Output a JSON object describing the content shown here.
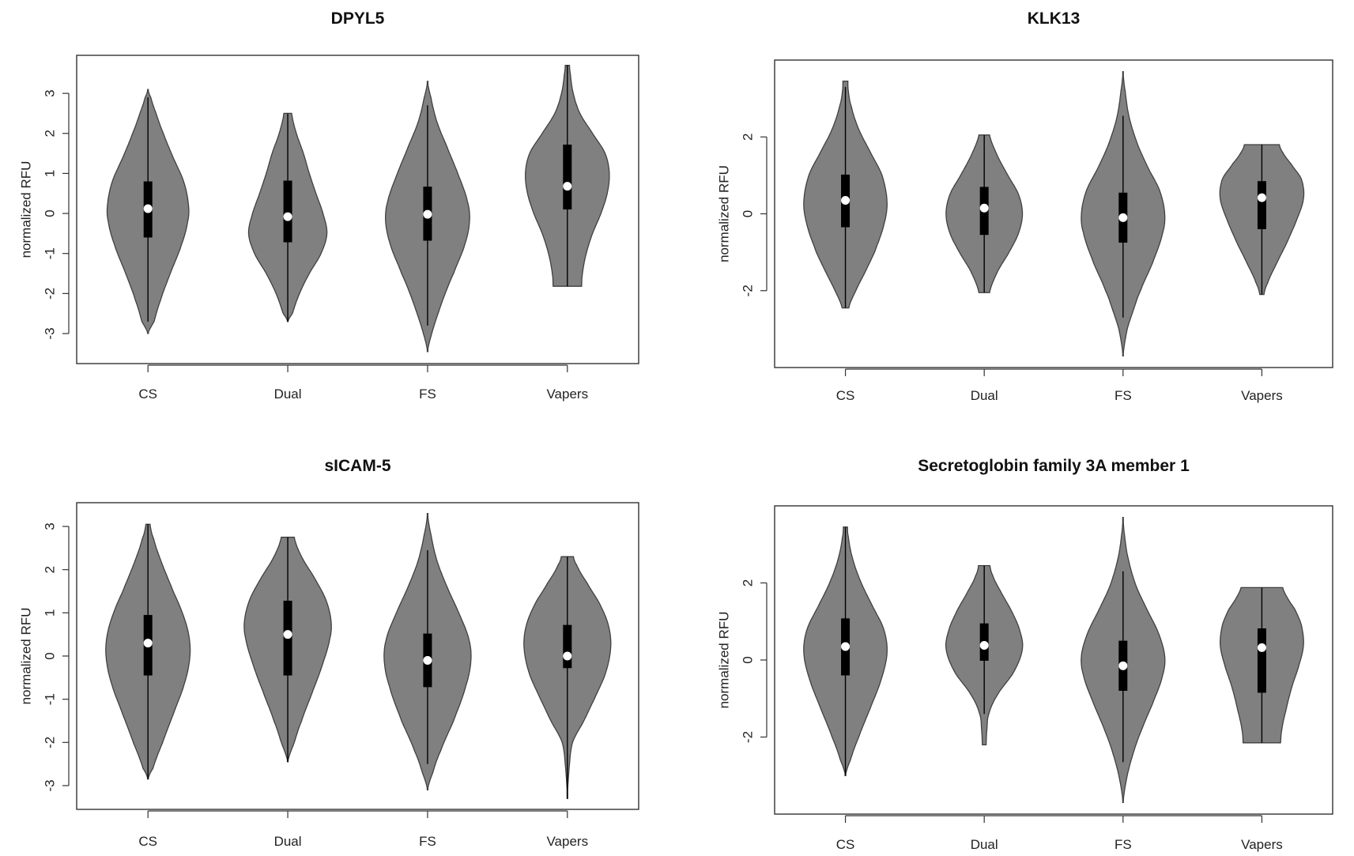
{
  "colors": {
    "violin_fill": "#808080",
    "violin_stroke": "#404040",
    "box": "#000000",
    "median": "#ffffff",
    "frame": "#333333"
  },
  "chart_data": [
    {
      "type": "violin",
      "title": "DPYL5",
      "xlabel": "",
      "ylabel": "normalized RFU",
      "categories": [
        "CS",
        "Dual",
        "FS",
        "Vapers"
      ],
      "yticks": [
        -3,
        -2,
        -1,
        0,
        1,
        2,
        3
      ],
      "ylim": [
        -3.75,
        3.95
      ],
      "grid": false,
      "violins": [
        {
          "name": "CS",
          "min": -3.0,
          "max": 3.1,
          "q1": -0.6,
          "median": 0.12,
          "q3": 0.8,
          "wlo": -2.7,
          "whi": 2.9,
          "width": 0.58,
          "profile": [
            [
              -3.0,
              0.0
            ],
            [
              -2.7,
              0.15
            ],
            [
              -2.2,
              0.3
            ],
            [
              -1.5,
              0.55
            ],
            [
              -0.8,
              0.82
            ],
            [
              -0.2,
              0.98
            ],
            [
              0.2,
              1.0
            ],
            [
              0.8,
              0.88
            ],
            [
              1.4,
              0.62
            ],
            [
              2.0,
              0.38
            ],
            [
              2.5,
              0.2
            ],
            [
              2.9,
              0.07
            ],
            [
              3.1,
              0.0
            ]
          ]
        },
        {
          "name": "Dual",
          "min": -2.7,
          "max": 2.5,
          "q1": -0.72,
          "median": -0.08,
          "q3": 0.82,
          "wlo": -2.7,
          "whi": 2.5,
          "width": 0.56,
          "profile": [
            [
              -2.7,
              0.0
            ],
            [
              -2.5,
              0.12
            ],
            [
              -2.0,
              0.3
            ],
            [
              -1.5,
              0.55
            ],
            [
              -1.0,
              0.85
            ],
            [
              -0.5,
              1.0
            ],
            [
              0.0,
              0.9
            ],
            [
              0.5,
              0.72
            ],
            [
              1.0,
              0.55
            ],
            [
              1.5,
              0.4
            ],
            [
              2.0,
              0.22
            ],
            [
              2.5,
              0.1
            ]
          ]
        },
        {
          "name": "FS",
          "min": -3.45,
          "max": 3.3,
          "q1": -0.68,
          "median": -0.02,
          "q3": 0.67,
          "wlo": -2.8,
          "whi": 2.7,
          "width": 0.6,
          "profile": [
            [
              -3.45,
              0.0
            ],
            [
              -3.0,
              0.1
            ],
            [
              -2.5,
              0.25
            ],
            [
              -2.0,
              0.42
            ],
            [
              -1.5,
              0.62
            ],
            [
              -0.8,
              0.88
            ],
            [
              -0.2,
              1.0
            ],
            [
              0.3,
              0.95
            ],
            [
              1.0,
              0.72
            ],
            [
              1.7,
              0.45
            ],
            [
              2.3,
              0.22
            ],
            [
              2.9,
              0.08
            ],
            [
              3.3,
              0.0
            ]
          ]
        },
        {
          "name": "Vapers",
          "min": -1.82,
          "max": 3.7,
          "q1": 0.1,
          "median": 0.68,
          "q3": 1.72,
          "wlo": -1.82,
          "whi": 3.7,
          "width": 0.6,
          "profile": [
            [
              -1.82,
              0.34
            ],
            [
              -1.5,
              0.36
            ],
            [
              -1.0,
              0.45
            ],
            [
              -0.5,
              0.6
            ],
            [
              0.0,
              0.8
            ],
            [
              0.5,
              0.95
            ],
            [
              1.0,
              1.0
            ],
            [
              1.5,
              0.9
            ],
            [
              2.0,
              0.6
            ],
            [
              2.5,
              0.3
            ],
            [
              3.0,
              0.14
            ],
            [
              3.5,
              0.07
            ],
            [
              3.7,
              0.05
            ]
          ]
        }
      ]
    },
    {
      "type": "violin",
      "title": "KLK13",
      "xlabel": "",
      "ylabel": "normalized RFU",
      "categories": [
        "CS",
        "Dual",
        "FS",
        "Vapers"
      ],
      "yticks": [
        -2,
        0,
        2
      ],
      "ylim": [
        -4.0,
        4.0
      ],
      "grid": false,
      "violins": [
        {
          "name": "CS",
          "min": -2.45,
          "max": 3.45,
          "q1": -0.35,
          "median": 0.35,
          "q3": 1.02,
          "wlo": -2.45,
          "whi": 3.3,
          "width": 0.6,
          "profile": [
            [
              -2.45,
              0.08
            ],
            [
              -2.0,
              0.25
            ],
            [
              -1.5,
              0.48
            ],
            [
              -1.0,
              0.7
            ],
            [
              -0.3,
              0.92
            ],
            [
              0.3,
              1.0
            ],
            [
              1.0,
              0.88
            ],
            [
              1.6,
              0.6
            ],
            [
              2.2,
              0.32
            ],
            [
              2.8,
              0.14
            ],
            [
              3.2,
              0.07
            ],
            [
              3.45,
              0.06
            ]
          ]
        },
        {
          "name": "Dual",
          "min": -2.05,
          "max": 2.05,
          "q1": -0.55,
          "median": 0.15,
          "q3": 0.7,
          "wlo": -2.05,
          "whi": 2.05,
          "width": 0.55,
          "profile": [
            [
              -2.05,
              0.14
            ],
            [
              -1.5,
              0.35
            ],
            [
              -1.0,
              0.65
            ],
            [
              -0.5,
              0.9
            ],
            [
              0.0,
              1.0
            ],
            [
              0.5,
              0.9
            ],
            [
              1.0,
              0.62
            ],
            [
              1.5,
              0.35
            ],
            [
              2.05,
              0.14
            ]
          ]
        },
        {
          "name": "FS",
          "min": -3.7,
          "max": 3.7,
          "q1": -0.75,
          "median": -0.1,
          "q3": 0.55,
          "wlo": -2.7,
          "whi": 2.55,
          "width": 0.6,
          "profile": [
            [
              -3.7,
              0.0
            ],
            [
              -3.0,
              0.1
            ],
            [
              -2.5,
              0.25
            ],
            [
              -2.0,
              0.42
            ],
            [
              -1.3,
              0.7
            ],
            [
              -0.5,
              0.95
            ],
            [
              0.0,
              1.0
            ],
            [
              0.6,
              0.88
            ],
            [
              1.2,
              0.6
            ],
            [
              1.8,
              0.35
            ],
            [
              2.5,
              0.15
            ],
            [
              3.2,
              0.05
            ],
            [
              3.7,
              0.0
            ]
          ]
        },
        {
          "name": "Vapers",
          "min": -2.1,
          "max": 1.8,
          "q1": -0.4,
          "median": 0.42,
          "q3": 0.85,
          "wlo": -2.1,
          "whi": 1.8,
          "width": 0.6,
          "profile": [
            [
              -2.1,
              0.05
            ],
            [
              -1.8,
              0.14
            ],
            [
              -1.3,
              0.35
            ],
            [
              -0.8,
              0.58
            ],
            [
              -0.2,
              0.82
            ],
            [
              0.4,
              1.0
            ],
            [
              0.9,
              0.95
            ],
            [
              1.3,
              0.7
            ],
            [
              1.6,
              0.5
            ],
            [
              1.8,
              0.42
            ]
          ]
        }
      ]
    },
    {
      "type": "violin",
      "title": "sICAM-5",
      "xlabel": "",
      "ylabel": "normalized RFU",
      "categories": [
        "CS",
        "Dual",
        "FS",
        "Vapers"
      ],
      "yticks": [
        -3,
        -2,
        -1,
        0,
        1,
        2,
        3
      ],
      "ylim": [
        -3.55,
        3.55
      ],
      "grid": false,
      "violins": [
        {
          "name": "CS",
          "min": -2.85,
          "max": 3.05,
          "q1": -0.45,
          "median": 0.3,
          "q3": 0.95,
          "wlo": -2.85,
          "whi": 3.05,
          "width": 0.6,
          "profile": [
            [
              -2.85,
              0.0
            ],
            [
              -2.6,
              0.12
            ],
            [
              -2.0,
              0.35
            ],
            [
              -1.3,
              0.62
            ],
            [
              -0.6,
              0.88
            ],
            [
              0.0,
              1.0
            ],
            [
              0.5,
              0.97
            ],
            [
              1.0,
              0.82
            ],
            [
              1.5,
              0.6
            ],
            [
              2.1,
              0.35
            ],
            [
              2.7,
              0.14
            ],
            [
              3.05,
              0.05
            ]
          ]
        },
        {
          "name": "Dual",
          "min": -2.45,
          "max": 2.75,
          "q1": -0.45,
          "median": 0.5,
          "q3": 1.28,
          "wlo": -2.45,
          "whi": 2.75,
          "width": 0.62,
          "profile": [
            [
              -2.45,
              0.0
            ],
            [
              -2.0,
              0.15
            ],
            [
              -1.5,
              0.32
            ],
            [
              -0.8,
              0.58
            ],
            [
              -0.2,
              0.8
            ],
            [
              0.4,
              0.97
            ],
            [
              0.8,
              1.0
            ],
            [
              1.3,
              0.88
            ],
            [
              1.8,
              0.62
            ],
            [
              2.3,
              0.32
            ],
            [
              2.75,
              0.15
            ]
          ]
        },
        {
          "name": "FS",
          "min": -3.1,
          "max": 3.3,
          "q1": -0.72,
          "median": -0.1,
          "q3": 0.52,
          "wlo": -2.5,
          "whi": 2.45,
          "width": 0.62,
          "profile": [
            [
              -3.1,
              0.0
            ],
            [
              -2.7,
              0.12
            ],
            [
              -2.2,
              0.3
            ],
            [
              -1.5,
              0.6
            ],
            [
              -0.7,
              0.88
            ],
            [
              -0.1,
              1.0
            ],
            [
              0.4,
              0.95
            ],
            [
              1.0,
              0.72
            ],
            [
              1.6,
              0.45
            ],
            [
              2.2,
              0.22
            ],
            [
              2.8,
              0.08
            ],
            [
              3.3,
              0.0
            ]
          ]
        },
        {
          "name": "Vapers",
          "min": -3.3,
          "max": 2.3,
          "q1": -0.28,
          "median": 0.0,
          "q3": 0.72,
          "wlo": -3.3,
          "whi": 2.3,
          "width": 0.62,
          "profile": [
            [
              -3.3,
              0.0
            ],
            [
              -2.6,
              0.04
            ],
            [
              -2.0,
              0.12
            ],
            [
              -1.5,
              0.38
            ],
            [
              -1.0,
              0.62
            ],
            [
              -0.4,
              0.88
            ],
            [
              0.2,
              1.0
            ],
            [
              0.7,
              0.95
            ],
            [
              1.2,
              0.75
            ],
            [
              1.7,
              0.45
            ],
            [
              2.1,
              0.22
            ],
            [
              2.3,
              0.14
            ]
          ]
        }
      ]
    },
    {
      "type": "violin",
      "title": "Secretoglobin family 3A member 1",
      "xlabel": "",
      "ylabel": "normalized RFU",
      "categories": [
        "CS",
        "Dual",
        "FS",
        "Vapers"
      ],
      "yticks": [
        -2,
        0,
        2
      ],
      "ylim": [
        -4.0,
        4.0
      ],
      "grid": false,
      "violins": [
        {
          "name": "CS",
          "min": -3.0,
          "max": 3.45,
          "q1": -0.4,
          "median": 0.35,
          "q3": 1.08,
          "wlo": -3.0,
          "whi": 3.45,
          "width": 0.6,
          "profile": [
            [
              -3.0,
              0.0
            ],
            [
              -2.6,
              0.12
            ],
            [
              -2.0,
              0.32
            ],
            [
              -1.3,
              0.58
            ],
            [
              -0.5,
              0.86
            ],
            [
              0.2,
              1.0
            ],
            [
              0.8,
              0.92
            ],
            [
              1.4,
              0.65
            ],
            [
              2.0,
              0.38
            ],
            [
              2.6,
              0.18
            ],
            [
              3.2,
              0.07
            ],
            [
              3.45,
              0.05
            ]
          ]
        },
        {
          "name": "Dual",
          "min": -2.2,
          "max": 2.45,
          "q1": -0.02,
          "median": 0.38,
          "q3": 0.95,
          "wlo": -1.4,
          "whi": 2.45,
          "width": 0.55,
          "profile": [
            [
              -2.2,
              0.05
            ],
            [
              -1.8,
              0.07
            ],
            [
              -1.4,
              0.12
            ],
            [
              -0.9,
              0.35
            ],
            [
              -0.3,
              0.78
            ],
            [
              0.3,
              1.0
            ],
            [
              0.8,
              0.92
            ],
            [
              1.3,
              0.7
            ],
            [
              1.8,
              0.42
            ],
            [
              2.2,
              0.22
            ],
            [
              2.45,
              0.15
            ]
          ]
        },
        {
          "name": "FS",
          "min": -3.7,
          "max": 3.7,
          "q1": -0.8,
          "median": -0.15,
          "q3": 0.5,
          "wlo": -2.65,
          "whi": 2.3,
          "width": 0.6,
          "profile": [
            [
              -3.7,
              0.0
            ],
            [
              -3.0,
              0.1
            ],
            [
              -2.4,
              0.25
            ],
            [
              -1.8,
              0.45
            ],
            [
              -1.1,
              0.72
            ],
            [
              -0.4,
              0.95
            ],
            [
              0.1,
              1.0
            ],
            [
              0.7,
              0.85
            ],
            [
              1.3,
              0.58
            ],
            [
              1.9,
              0.32
            ],
            [
              2.6,
              0.13
            ],
            [
              3.2,
              0.04
            ],
            [
              3.7,
              0.0
            ]
          ]
        },
        {
          "name": "Vapers",
          "min": -2.15,
          "max": 1.88,
          "q1": -0.85,
          "median": 0.32,
          "q3": 0.82,
          "wlo": -2.15,
          "whi": 1.88,
          "width": 0.6,
          "profile": [
            [
              -2.15,
              0.45
            ],
            [
              -1.8,
              0.48
            ],
            [
              -1.3,
              0.58
            ],
            [
              -0.7,
              0.72
            ],
            [
              -0.1,
              0.9
            ],
            [
              0.4,
              1.0
            ],
            [
              0.9,
              0.95
            ],
            [
              1.3,
              0.8
            ],
            [
              1.6,
              0.62
            ],
            [
              1.88,
              0.5
            ]
          ]
        }
      ]
    }
  ]
}
